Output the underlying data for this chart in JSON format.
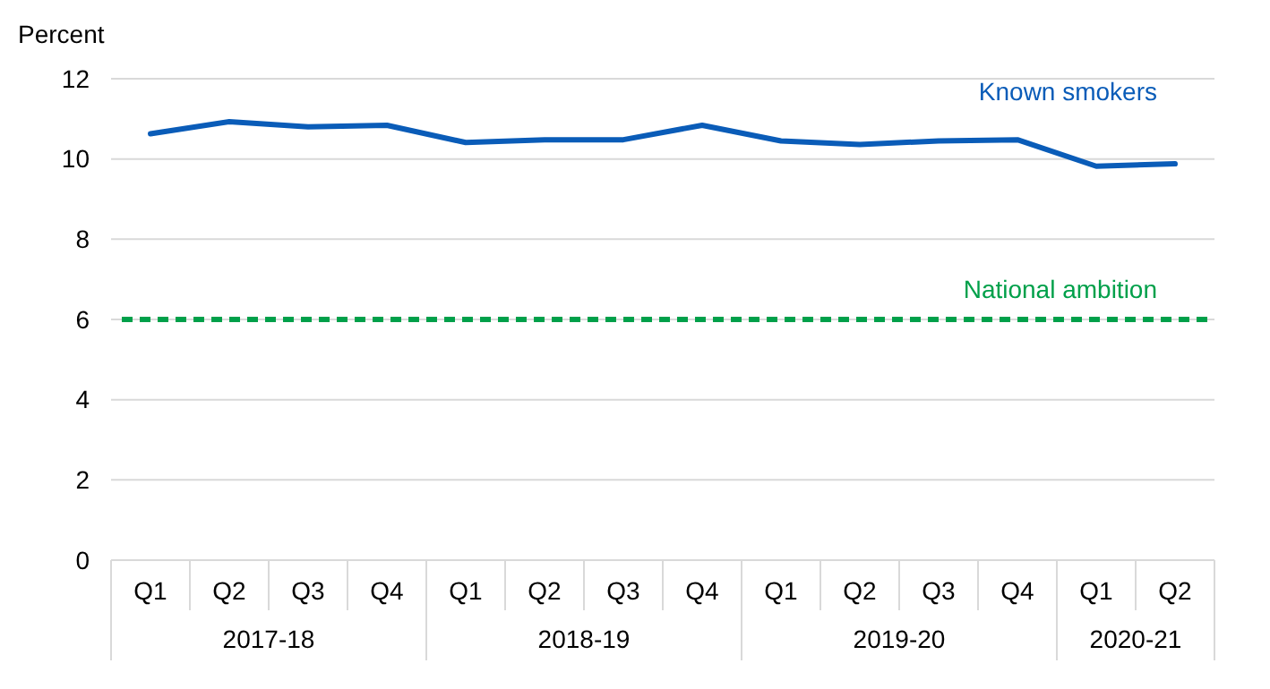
{
  "chart_data": {
    "type": "line",
    "ylabel": "Percent",
    "categories": [
      "Q1",
      "Q2",
      "Q3",
      "Q4",
      "Q1",
      "Q2",
      "Q3",
      "Q4",
      "Q1",
      "Q2",
      "Q3",
      "Q4",
      "Q1",
      "Q2"
    ],
    "series": [
      {
        "name": "Known smokers",
        "color": "#0a5cb8",
        "values": [
          10.63,
          10.93,
          10.8,
          10.84,
          10.41,
          10.48,
          10.48,
          10.84,
          10.45,
          10.36,
          10.45,
          10.48,
          9.82,
          9.88
        ]
      }
    ],
    "ref_lines": [
      {
        "axis": "y",
        "value": 6,
        "label": "National ambition",
        "color": "#00a04a",
        "line_style": "dashed"
      }
    ],
    "annotations": [
      "2017-18",
      "2018-19",
      "2019-20",
      "2020-21"
    ],
    "ylim": [
      0,
      12
    ],
    "yticks": [
      0,
      2,
      4,
      6,
      8,
      10,
      12
    ],
    "grid": "y",
    "marker": "none",
    "line_style": "solid",
    "legend": false
  }
}
